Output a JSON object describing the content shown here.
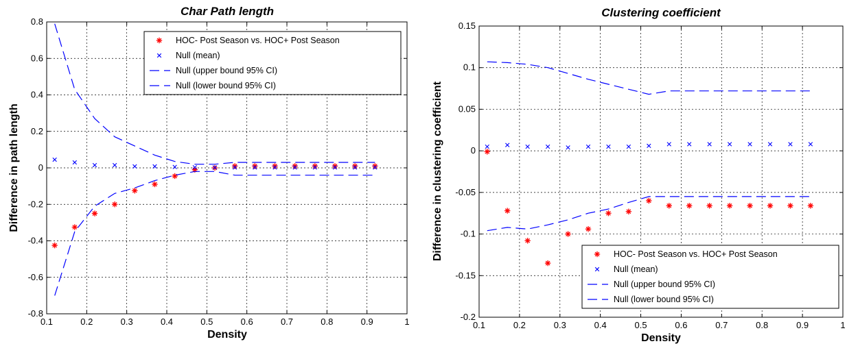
{
  "chart_data": [
    {
      "type": "scatter",
      "title": "Char Path length",
      "xlabel": "Density",
      "ylabel": "Difference in path length",
      "xlim": [
        0.1,
        1
      ],
      "ylim": [
        -0.8,
        0.8
      ],
      "xticks": [
        0.1,
        0.2,
        0.3,
        0.4,
        0.5,
        0.6,
        0.7,
        0.8,
        0.9,
        1
      ],
      "xtick_labels": [
        "0.1",
        "0.2",
        "0.3",
        "0.4",
        "0.5",
        "0.6",
        "0.7",
        "0.8",
        "0.9",
        "1"
      ],
      "yticks": [
        -0.8,
        -0.6,
        -0.4,
        -0.2,
        0,
        0.2,
        0.4,
        0.6,
        0.8
      ],
      "ytick_labels": [
        "-0.8",
        "-0.6",
        "-0.4",
        "-0.2",
        "0",
        "0.2",
        "0.4",
        "0.6",
        "0.8"
      ],
      "grid": true,
      "legend_position": "top-right",
      "x": [
        0.12,
        0.17,
        0.22,
        0.27,
        0.32,
        0.37,
        0.42,
        0.47,
        0.52,
        0.57,
        0.62,
        0.67,
        0.72,
        0.77,
        0.82,
        0.87,
        0.92
      ],
      "series": [
        {
          "name": "HOC- Post Season vs. HOC+ Post Season",
          "style": "red-star",
          "values": [
            -0.425,
            -0.325,
            -0.25,
            -0.2,
            -0.125,
            -0.09,
            -0.045,
            -0.01,
            0.0,
            0.01,
            0.01,
            0.01,
            0.01,
            0.01,
            0.01,
            0.01,
            0.01
          ]
        },
        {
          "name": "Null (mean)",
          "style": "blue-x",
          "values": [
            0.045,
            0.03,
            0.015,
            0.015,
            0.008,
            0.008,
            0.005,
            0.003,
            0.002,
            0.002,
            0.002,
            0.002,
            0.002,
            0.002,
            0.002,
            0.002,
            0.002
          ]
        },
        {
          "name": "Null (upper bound 95% CI)",
          "style": "blue-dash",
          "values": [
            0.79,
            0.43,
            0.27,
            0.17,
            0.12,
            0.07,
            0.035,
            0.02,
            0.02,
            0.03,
            0.03,
            0.03,
            0.03,
            0.03,
            0.03,
            0.03,
            0.03
          ]
        },
        {
          "name": "Null (lower bound 95% CI)",
          "style": "blue-dash",
          "values": [
            -0.7,
            -0.35,
            -0.21,
            -0.14,
            -0.11,
            -0.07,
            -0.04,
            -0.02,
            -0.02,
            -0.04,
            -0.04,
            -0.04,
            -0.04,
            -0.04,
            -0.04,
            -0.04,
            -0.04
          ]
        }
      ]
    },
    {
      "type": "scatter",
      "title": "Clustering coefficient",
      "xlabel": "Density",
      "ylabel": "Difference in clustering coefficient",
      "xlim": [
        0.1,
        1
      ],
      "ylim": [
        -0.2,
        0.15
      ],
      "xticks": [
        0.1,
        0.2,
        0.3,
        0.4,
        0.5,
        0.6,
        0.7,
        0.8,
        0.9,
        1
      ],
      "xtick_labels": [
        "0.1",
        "0.2",
        "0.3",
        "0.4",
        "0.5",
        "0.6",
        "0.7",
        "0.8",
        "0.9",
        "1"
      ],
      "yticks": [
        -0.2,
        -0.15,
        -0.1,
        -0.05,
        0,
        0.05,
        0.1,
        0.15
      ],
      "ytick_labels": [
        "-0.2",
        "-0.15",
        "-0.1",
        "-0.05",
        "0",
        "0.05",
        "0.1",
        "0.15"
      ],
      "grid": true,
      "legend_position": "bottom-right",
      "x": [
        0.12,
        0.17,
        0.22,
        0.27,
        0.32,
        0.37,
        0.42,
        0.47,
        0.52,
        0.57,
        0.62,
        0.67,
        0.72,
        0.77,
        0.82,
        0.87,
        0.92
      ],
      "series": [
        {
          "name": "HOC- Post Season vs. HOC+ Post Season",
          "style": "red-star",
          "values": [
            -0.001,
            -0.072,
            -0.108,
            -0.135,
            -0.1,
            -0.094,
            -0.075,
            -0.073,
            -0.06,
            -0.066,
            -0.066,
            -0.066,
            -0.066,
            -0.066,
            -0.066,
            -0.066,
            -0.066
          ]
        },
        {
          "name": "Null (mean)",
          "style": "blue-x",
          "values": [
            0.005,
            0.007,
            0.005,
            0.005,
            0.004,
            0.005,
            0.005,
            0.005,
            0.006,
            0.008,
            0.008,
            0.008,
            0.008,
            0.008,
            0.008,
            0.008,
            0.008
          ]
        },
        {
          "name": "Null (upper bound 95% CI)",
          "style": "blue-dash",
          "values": [
            0.107,
            0.106,
            0.104,
            0.1,
            0.093,
            0.086,
            0.08,
            0.074,
            0.068,
            0.072,
            0.072,
            0.072,
            0.072,
            0.072,
            0.072,
            0.072,
            0.072
          ]
        },
        {
          "name": "Null (lower bound 95% CI)",
          "style": "blue-dash",
          "values": [
            -0.096,
            -0.092,
            -0.094,
            -0.089,
            -0.083,
            -0.075,
            -0.07,
            -0.062,
            -0.055,
            -0.055,
            -0.055,
            -0.055,
            -0.055,
            -0.055,
            -0.055,
            -0.055,
            -0.055
          ]
        }
      ]
    }
  ]
}
